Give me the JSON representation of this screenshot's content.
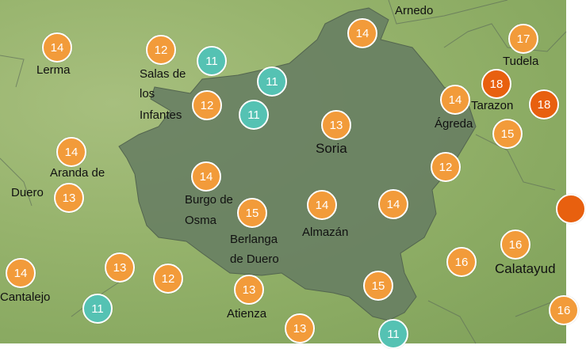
{
  "colors": {
    "warm": "#f29b3a",
    "cool": "#55c2b3",
    "hot": "#e8600f",
    "province": "#667d62"
  },
  "markers": [
    {
      "value": "14",
      "level": "warm"
    },
    {
      "value": "12",
      "level": "warm"
    },
    {
      "value": "11",
      "level": "cool"
    },
    {
      "value": "11",
      "level": "cool"
    },
    {
      "value": "12",
      "level": "warm"
    },
    {
      "value": "11",
      "level": "cool"
    },
    {
      "value": "14",
      "level": "warm"
    },
    {
      "value": "13",
      "level": "warm"
    },
    {
      "value": "14",
      "level": "warm"
    },
    {
      "value": "18",
      "level": "hot"
    },
    {
      "value": "18",
      "level": "hot"
    },
    {
      "value": "17",
      "level": "warm"
    },
    {
      "value": "15",
      "level": "warm"
    },
    {
      "value": "14",
      "level": "warm"
    },
    {
      "value": "13",
      "level": "warm"
    },
    {
      "value": "14",
      "level": "warm"
    },
    {
      "value": "15",
      "level": "warm"
    },
    {
      "value": "14",
      "level": "warm"
    },
    {
      "value": "14",
      "level": "warm"
    },
    {
      "value": "12",
      "level": "warm"
    },
    {
      "value": "16",
      "level": "warm"
    },
    {
      "value": "16",
      "level": "warm"
    },
    {
      "value": "",
      "level": "hot"
    },
    {
      "value": "16",
      "level": "warm"
    },
    {
      "value": "14",
      "level": "warm"
    },
    {
      "value": "13",
      "level": "warm"
    },
    {
      "value": "12",
      "level": "warm"
    },
    {
      "value": "13",
      "level": "warm"
    },
    {
      "value": "15",
      "level": "warm"
    },
    {
      "value": "11",
      "level": "cool"
    },
    {
      "value": "13",
      "level": "warm"
    },
    {
      "value": "11",
      "level": "cool"
    }
  ],
  "towns": {
    "arnedo": "Arnedo",
    "lerma": "Lerma",
    "salas_1": "Salas de",
    "salas_2": "los",
    "salas_3": "Infantes",
    "tudela": "Tudela",
    "tarazona": "Tarazon",
    "agreda": "Ágreda",
    "soria": "Soria",
    "aranda_1": "Aranda de",
    "aranda_2": "Duero",
    "burgo_1": "Burgo de",
    "burgo_2": "Osma",
    "berlanga_1": "Berlanga",
    "berlanga_2": "de Duero",
    "almazan": "Almazán",
    "calatayud": "Calatayud",
    "cantalejo": "Cantalejo",
    "atienza": "Atienza"
  }
}
